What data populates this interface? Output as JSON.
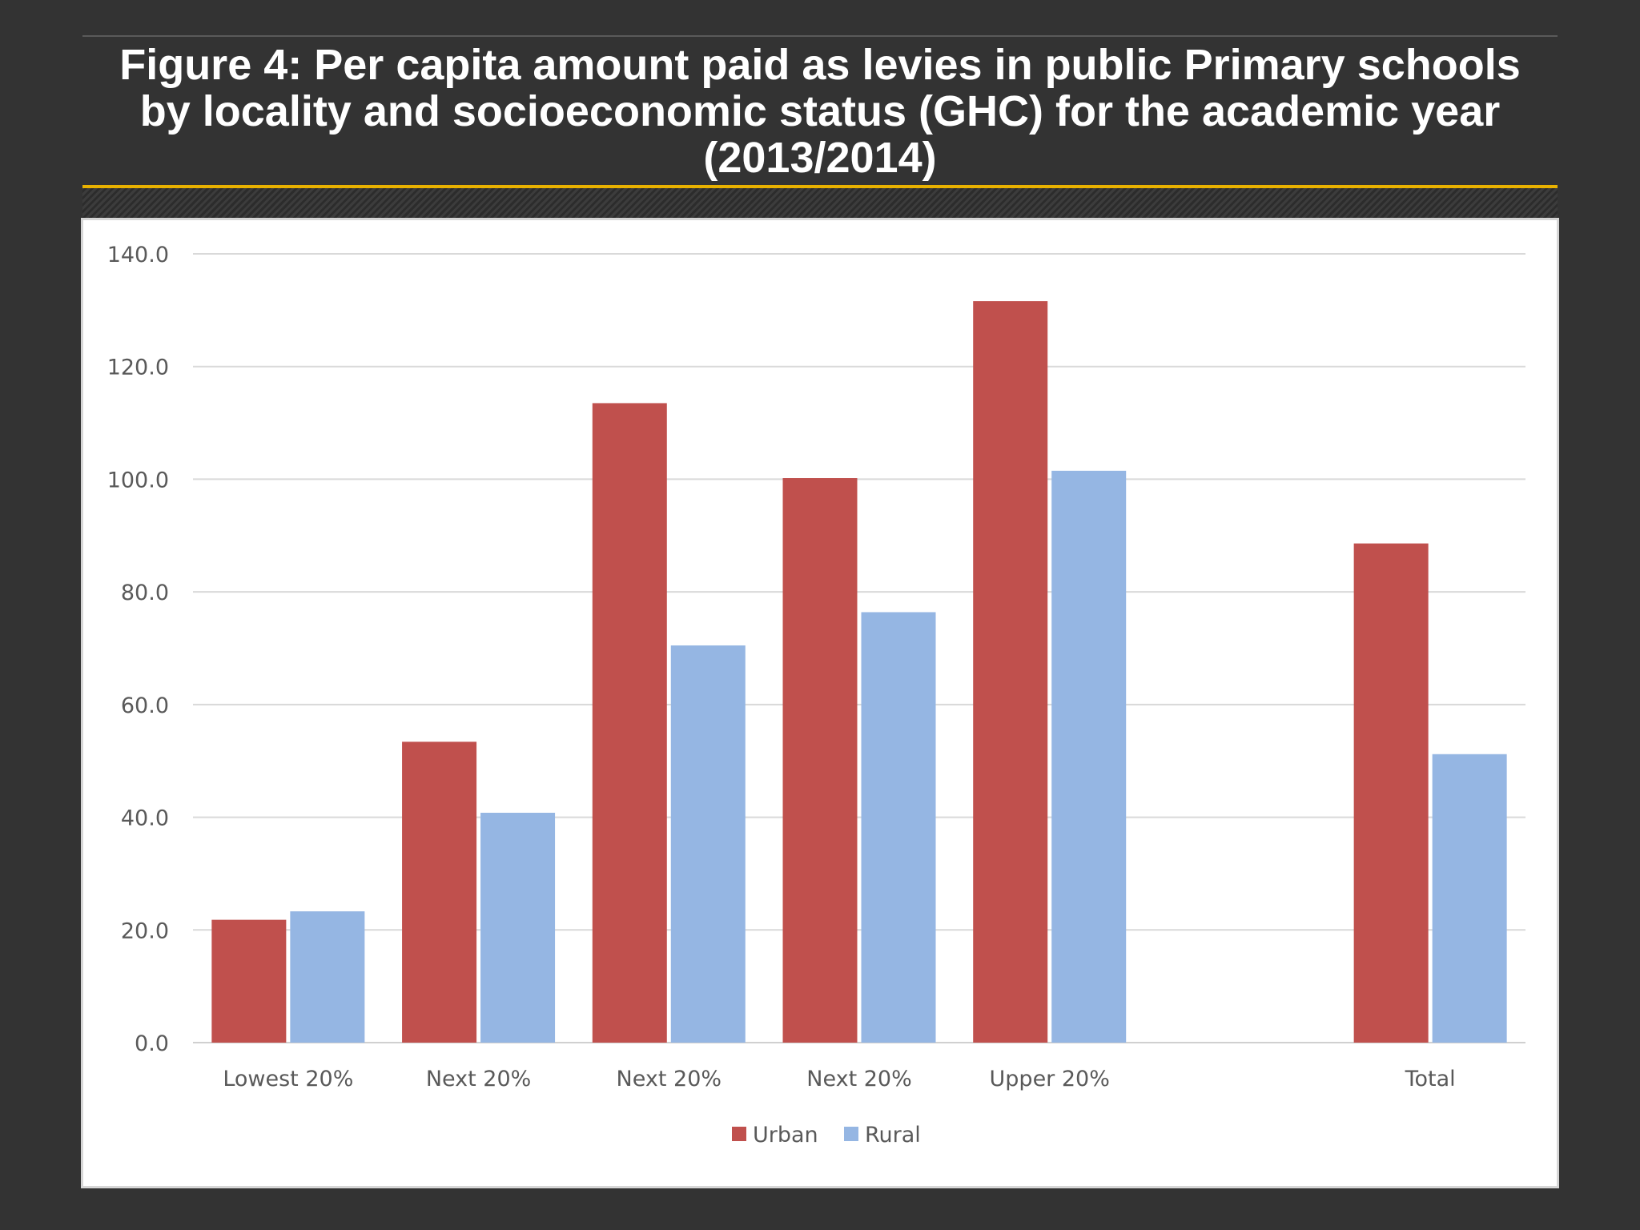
{
  "title_lines": [
    "Figure 4: Per capita amount paid as levies in public Primary schools",
    "by locality and socioeconomic status (GHC) for the academic year",
    "(2013/2014)"
  ],
  "colors": {
    "urban": "#c0504d",
    "rural": "#95b6e3",
    "gold_rule": "#e8b100",
    "background": "#333333"
  },
  "chart_data": {
    "type": "bar",
    "title": "Figure 4: Per capita amount paid as levies in public Primary schools by locality and socioeconomic status (GHC) for the academic year (2013/2014)",
    "xlabel": "",
    "ylabel": "",
    "categories": [
      "Lowest 20%",
      "Next 20%",
      "Next 20%",
      "Next 20%",
      "Upper 20%",
      "",
      "Total"
    ],
    "series": [
      {
        "name": "Urban",
        "values": [
          21.8,
          53.4,
          113.5,
          100.2,
          131.6,
          null,
          88.6
        ]
      },
      {
        "name": "Rural",
        "values": [
          23.3,
          40.8,
          70.5,
          76.4,
          101.5,
          null,
          51.2
        ]
      }
    ],
    "ylim": [
      0,
      140
    ],
    "yticks": [
      "0.0",
      "20.0",
      "40.0",
      "60.0",
      "80.0",
      "100.0",
      "120.0",
      "140.0"
    ],
    "grid": true,
    "legend": "bottom-center"
  }
}
